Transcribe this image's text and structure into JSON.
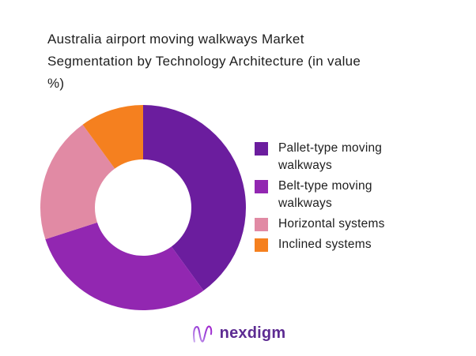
{
  "header": {
    "lines": [
      "Australia airport moving walkways Market",
      "Segmentation by Technology Architecture (in value",
      "%)"
    ]
  },
  "chart_data": {
    "type": "pie",
    "subtype": "donut",
    "title": "Australia airport moving walkways Market Segmentation by Technology Architecture (in value %)",
    "categories": [
      "Pallet-type moving walkways",
      "Belt-type moving walkways",
      "Horizontal systems",
      "Inclined systems"
    ],
    "values": [
      40,
      30,
      20,
      10
    ],
    "unit": "value %",
    "colors": [
      "#6b1d9e",
      "#9227b1",
      "#e18aa4",
      "#f5801f"
    ],
    "start_angle_deg": 0,
    "direction": "clockwise",
    "inner_radius_ratio": 0.47,
    "legend_position": "right",
    "data_labels": "none"
  },
  "footer": {
    "logo_text": "nexdigm"
  }
}
